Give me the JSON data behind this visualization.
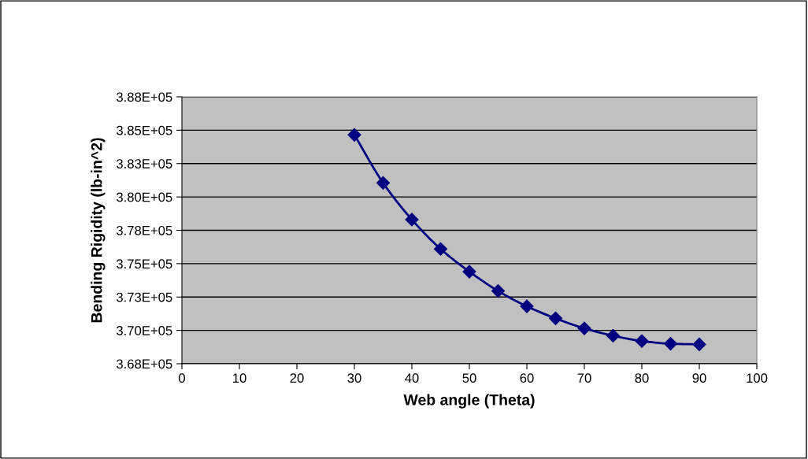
{
  "chart_data": {
    "type": "line",
    "xlabel": "Web angle (Theta)",
    "ylabel": "Bending Rigidity (lb-in^2)",
    "x": [
      30,
      35,
      40,
      45,
      50,
      55,
      60,
      65,
      70,
      75,
      80,
      85,
      90
    ],
    "series": [
      {
        "color": "#000080",
        "values": [
          384650,
          381050,
          378300,
          376100,
          374400,
          372950,
          371800,
          370900,
          370150,
          369600,
          369200,
          369000,
          368950
        ]
      }
    ],
    "xlim": [
      0,
      100
    ],
    "xticks": [
      0,
      10,
      20,
      30,
      40,
      50,
      60,
      70,
      80,
      90,
      100
    ],
    "ylim": [
      367500,
      387500
    ],
    "yticks": [
      {
        "value": 367500,
        "label": "3.68E+05"
      },
      {
        "value": 370000,
        "label": "3.70E+05"
      },
      {
        "value": 372500,
        "label": "3.73E+05"
      },
      {
        "value": 375000,
        "label": "3.75E+05"
      },
      {
        "value": 377500,
        "label": "3.78E+05"
      },
      {
        "value": 380000,
        "label": "3.80E+05"
      },
      {
        "value": 382500,
        "label": "3.83E+05"
      },
      {
        "value": 385000,
        "label": "3.85E+05"
      },
      {
        "value": 387500,
        "label": "3.88E+05"
      }
    ],
    "grid": "y",
    "marker": "diamond",
    "line_style": "solid"
  }
}
